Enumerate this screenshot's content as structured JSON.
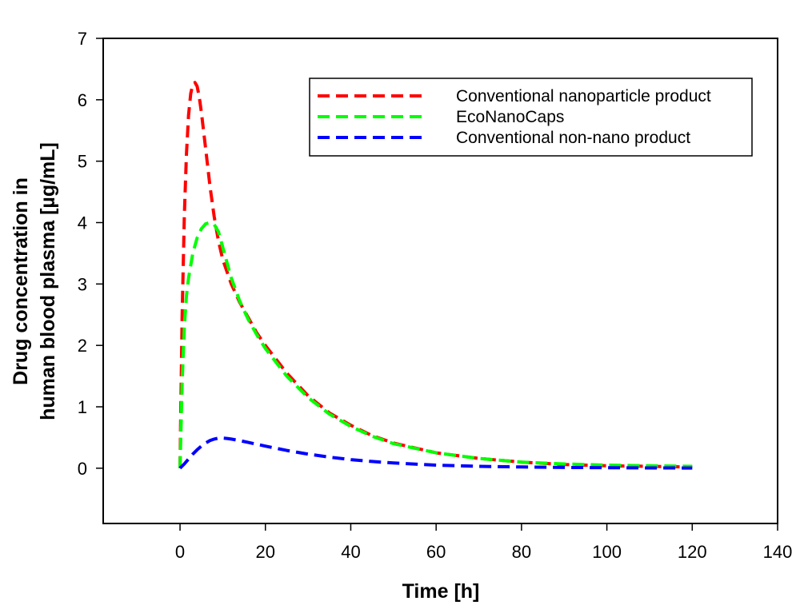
{
  "chart_data": {
    "type": "line",
    "title": "",
    "xlabel": "Time [h]",
    "ylabel_lines": [
      "Drug concentration in",
      "human blood plasma [µg/mL]"
    ],
    "xlim": [
      -18,
      140
    ],
    "ylim": [
      -0.9,
      7
    ],
    "xticks": [
      0,
      20,
      40,
      60,
      80,
      100,
      120,
      140
    ],
    "yticks": [
      0,
      1,
      2,
      3,
      4,
      5,
      6,
      7
    ],
    "grid": false,
    "legend_position": "top-right",
    "series": [
      {
        "name": "Conventional nanoparticle product",
        "color": "#ff0000",
        "style": "dashed",
        "x": [
          0,
          0.5,
          1,
          1.5,
          2,
          2.5,
          3,
          3.5,
          4,
          4.5,
          5,
          6,
          7,
          8,
          9,
          10,
          12,
          14,
          16,
          18,
          20,
          25,
          30,
          35,
          40,
          45,
          50,
          60,
          70,
          80,
          90,
          100,
          110,
          120
        ],
        "y": [
          0,
          2.5,
          4.1,
          5.1,
          5.75,
          6.1,
          6.25,
          6.28,
          6.22,
          6.05,
          5.8,
          5.2,
          4.6,
          4.1,
          3.7,
          3.4,
          3.0,
          2.7,
          2.45,
          2.2,
          2.0,
          1.55,
          1.18,
          0.9,
          0.7,
          0.53,
          0.41,
          0.25,
          0.16,
          0.1,
          0.06,
          0.04,
          0.03,
          0.02
        ]
      },
      {
        "name": "EcoNanoCaps",
        "color": "#00ff00",
        "style": "dashed",
        "x": [
          0,
          0.5,
          1,
          1.5,
          2,
          3,
          4,
          5,
          6,
          7,
          8,
          9,
          10,
          11,
          12,
          14,
          16,
          18,
          20,
          25,
          30,
          35,
          40,
          45,
          50,
          60,
          70,
          80,
          90,
          100,
          110,
          120
        ],
        "y": [
          0,
          1.4,
          2.3,
          2.8,
          3.1,
          3.5,
          3.75,
          3.9,
          3.98,
          4.0,
          3.97,
          3.85,
          3.6,
          3.35,
          3.1,
          2.72,
          2.42,
          2.17,
          1.95,
          1.5,
          1.15,
          0.88,
          0.68,
          0.52,
          0.4,
          0.25,
          0.16,
          0.1,
          0.07,
          0.05,
          0.04,
          0.03
        ]
      },
      {
        "name": "Conventional non-nano product",
        "color": "#0000ff",
        "style": "dashed",
        "x": [
          0,
          1,
          2,
          3,
          4,
          5,
          6,
          7,
          8,
          9,
          10,
          11,
          12,
          14,
          16,
          18,
          20,
          25,
          30,
          35,
          40,
          45,
          50,
          60,
          70,
          80,
          90,
          100,
          110,
          120
        ],
        "y": [
          0,
          0.07,
          0.15,
          0.23,
          0.3,
          0.36,
          0.41,
          0.45,
          0.475,
          0.49,
          0.49,
          0.485,
          0.475,
          0.45,
          0.42,
          0.39,
          0.36,
          0.29,
          0.23,
          0.18,
          0.14,
          0.11,
          0.085,
          0.05,
          0.03,
          0.02,
          0.012,
          0.008,
          0.005,
          0.003
        ]
      }
    ]
  }
}
